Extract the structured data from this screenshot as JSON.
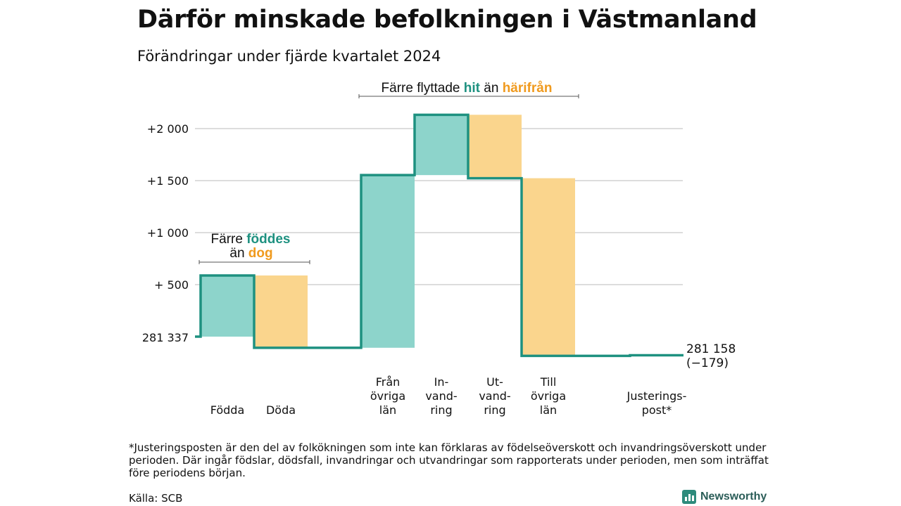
{
  "header": {
    "title": "Därför minskade befolkningen i Västmanland",
    "subtitle": "Förändringar under fjärde kvartalet 2024"
  },
  "footnote": "*Justeringsposten är den del av folkökningen som inte kan förklaras av födelseöverskott och invandringsöverskott under perioden. Där ingår födslar, dödsfall, invandringar och utvandringar som rapporterats under perioden, men som inträffat före periodens början.",
  "source": "Källa: SCB",
  "brand": {
    "name": "Newsworthy",
    "icon": "newsworthy-logo-icon"
  },
  "colors": {
    "increase": "#8dd4cb",
    "decrease": "#fad58d",
    "line": "#1e9180",
    "teal_text": "#1e9180",
    "orange_text": "#f09a1e",
    "grid": "#dddddd"
  },
  "chart_data": {
    "type": "waterfall",
    "start_value": 281337,
    "start_label": "281 337",
    "end_value": 281158,
    "end_label": [
      "281 158",
      "(−179)"
    ],
    "steps": [
      {
        "label": [
          "Födda"
        ],
        "change": 588,
        "kind": "increase"
      },
      {
        "label": [
          "Döda"
        ],
        "change": -695,
        "kind": "decrease"
      },
      {
        "label": [
          "Från",
          "övriga",
          "län"
        ],
        "change": 1660,
        "kind": "increase"
      },
      {
        "label": [
          "In-",
          "vand-",
          "ring"
        ],
        "change": 580,
        "kind": "increase"
      },
      {
        "label": [
          "Ut-",
          "vand-",
          "ring"
        ],
        "change": -610,
        "kind": "decrease"
      },
      {
        "label": [
          "Till",
          "övriga",
          "län"
        ],
        "change": -1708,
        "kind": "decrease"
      },
      {
        "label": [
          "Justerings-",
          "post*"
        ],
        "change": 6,
        "kind": "increase"
      }
    ],
    "yticks": [
      {
        "value": 500,
        "label": "+  500"
      },
      {
        "value": 1000,
        "label": "+1 000"
      },
      {
        "value": 1500,
        "label": "+1 500"
      },
      {
        "value": 2000,
        "label": "+2 000"
      }
    ],
    "ylim": [
      -400,
      2300
    ],
    "annotations": [
      {
        "parts": [
          {
            "text": "Färre ",
            "style": "plain"
          },
          {
            "text": "föddes",
            "style": "teal"
          }
        ],
        "line2": [
          {
            "text": "än ",
            "style": "plain"
          },
          {
            "text": "dog",
            "style": "orange"
          }
        ],
        "span": [
          0,
          1
        ]
      },
      {
        "parts": [
          {
            "text": "Färre flyttade ",
            "style": "plain"
          },
          {
            "text": "hit",
            "style": "teal"
          },
          {
            "text": "  än ",
            "style": "plain"
          },
          {
            "text": "härifrån",
            "style": "orange"
          }
        ],
        "span": [
          2,
          5
        ]
      }
    ]
  }
}
